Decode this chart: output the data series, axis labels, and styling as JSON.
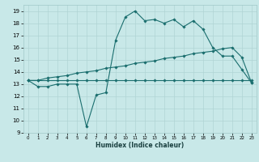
{
  "title": "",
  "xlabel": "Humidex (Indice chaleur)",
  "x_values": [
    0,
    1,
    2,
    3,
    4,
    5,
    6,
    7,
    8,
    9,
    10,
    11,
    12,
    13,
    14,
    15,
    16,
    17,
    18,
    19,
    20,
    21,
    22,
    23
  ],
  "line1_y": [
    13.3,
    12.8,
    12.8,
    13.0,
    13.0,
    13.0,
    9.5,
    12.1,
    12.3,
    16.6,
    18.5,
    19.0,
    18.2,
    18.3,
    18.0,
    18.3,
    17.7,
    18.2,
    17.5,
    16.0,
    15.3,
    15.3,
    14.2,
    13.1
  ],
  "line2_y": [
    13.3,
    13.3,
    13.3,
    13.3,
    13.3,
    13.3,
    13.3,
    13.3,
    13.3,
    13.3,
    13.3,
    13.3,
    13.3,
    13.3,
    13.3,
    13.3,
    13.3,
    13.3,
    13.3,
    13.3,
    13.3,
    13.3,
    13.3,
    13.3
  ],
  "line3_y": [
    13.3,
    13.3,
    13.5,
    13.6,
    13.7,
    13.9,
    14.0,
    14.1,
    14.3,
    14.4,
    14.5,
    14.7,
    14.8,
    14.9,
    15.1,
    15.2,
    15.3,
    15.5,
    15.6,
    15.7,
    15.9,
    16.0,
    15.2,
    13.1
  ],
  "line_color": "#1a6e6e",
  "bg_color": "#c8e8e8",
  "grid_color": "#b0d4d4",
  "ylim": [
    9,
    19.5
  ],
  "xlim": [
    -0.5,
    23.5
  ],
  "yticks": [
    9,
    10,
    11,
    12,
    13,
    14,
    15,
    16,
    17,
    18,
    19
  ],
  "xticks": [
    0,
    1,
    2,
    3,
    4,
    5,
    6,
    7,
    8,
    9,
    10,
    11,
    12,
    13,
    14,
    15,
    16,
    17,
    18,
    19,
    20,
    21,
    22,
    23
  ]
}
